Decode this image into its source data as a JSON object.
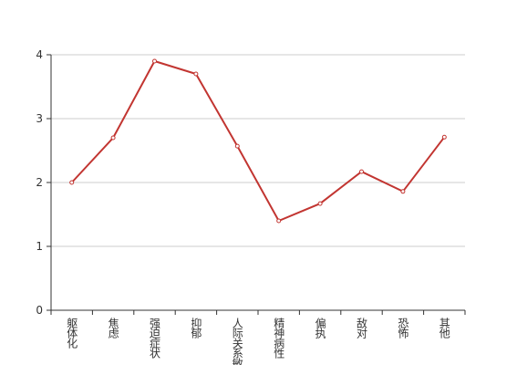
{
  "chart_data": {
    "type": "line",
    "categories": [
      "躯体化",
      "焦虑",
      "强迫症状",
      "抑郁",
      "人际关系敏感",
      "精神病性",
      "偏执",
      "敌对",
      "恐怖",
      "其他"
    ],
    "values": [
      2.0,
      2.7,
      3.9,
      3.7,
      2.57,
      1.4,
      1.67,
      2.17,
      1.86,
      2.71
    ],
    "color": "#c23531",
    "ylim": [
      0,
      4
    ],
    "yticks": [
      0,
      1,
      2,
      3,
      4
    ],
    "grid": true
  }
}
